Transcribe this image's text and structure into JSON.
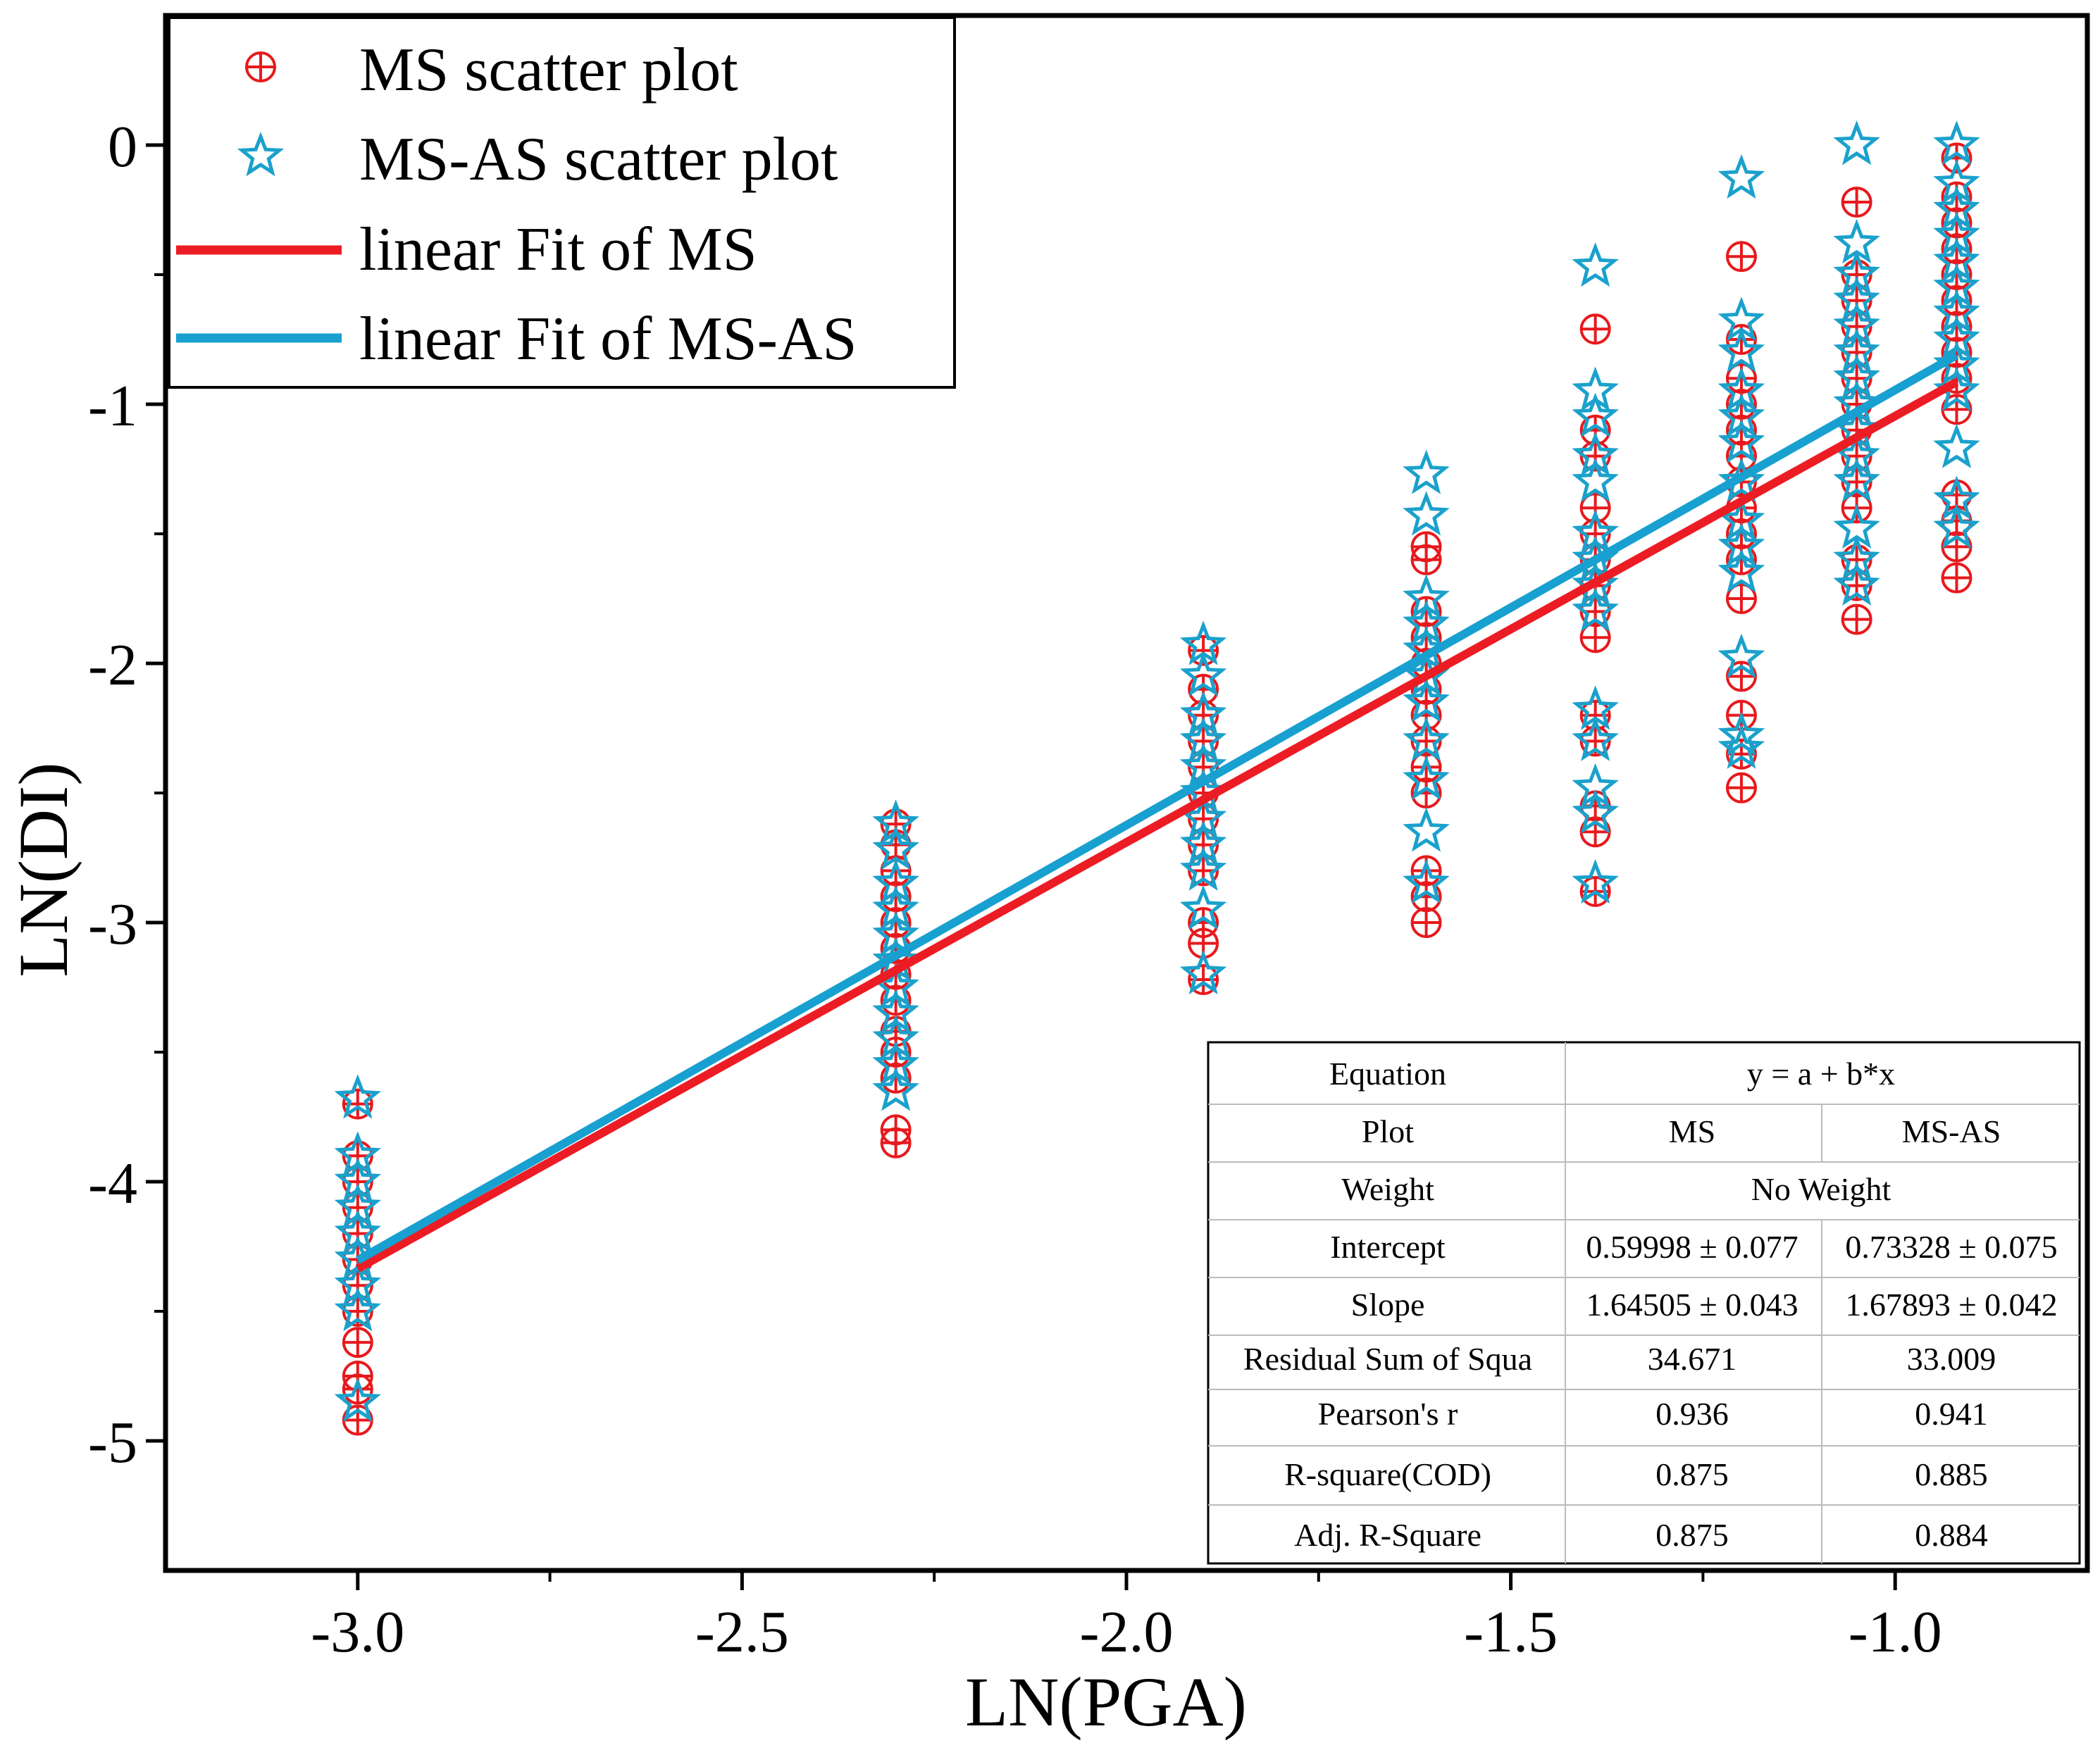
{
  "chart_data": {
    "type": "scatter",
    "xlabel": "LN(PGA)",
    "ylabel": "LN(DI)",
    "xlim": [
      -3.25,
      -0.75
    ],
    "ylim": [
      -5.5,
      0.5
    ],
    "xticks": [
      -3.0,
      -2.5,
      -2.0,
      -1.5,
      -1.0
    ],
    "xtick_labels": [
      "-3.0",
      "-2.5",
      "-2.0",
      "-1.5",
      "-1.0"
    ],
    "yticks": [
      0,
      -1,
      -2,
      -3,
      -4,
      -5
    ],
    "ytick_labels": [
      "0",
      "-1",
      "-2",
      "-3",
      "-4",
      "-5"
    ],
    "grid": false,
    "legend_position": "top-left",
    "series": [
      {
        "name": "MS scatter plot",
        "kind": "scatter",
        "marker": "circle-plus",
        "color": "#e8191c",
        "points": [
          [
            -3.0,
            -3.7
          ],
          [
            -3.0,
            -3.9
          ],
          [
            -3.0,
            -4.0
          ],
          [
            -3.0,
            -4.1
          ],
          [
            -3.0,
            -4.2
          ],
          [
            -3.0,
            -4.3
          ],
          [
            -3.0,
            -4.4
          ],
          [
            -3.0,
            -4.5
          ],
          [
            -3.0,
            -4.62
          ],
          [
            -3.0,
            -4.75
          ],
          [
            -3.0,
            -4.8
          ],
          [
            -3.0,
            -4.92
          ],
          [
            -2.3,
            -2.62
          ],
          [
            -2.3,
            -2.7
          ],
          [
            -2.3,
            -2.8
          ],
          [
            -2.3,
            -2.9
          ],
          [
            -2.3,
            -3.0
          ],
          [
            -2.3,
            -3.1
          ],
          [
            -2.3,
            -3.2
          ],
          [
            -2.3,
            -3.3
          ],
          [
            -2.3,
            -3.42
          ],
          [
            -2.3,
            -3.5
          ],
          [
            -2.3,
            -3.6
          ],
          [
            -2.3,
            -3.8
          ],
          [
            -2.3,
            -3.85
          ],
          [
            -1.9,
            -1.95
          ],
          [
            -1.9,
            -2.1
          ],
          [
            -1.9,
            -2.2
          ],
          [
            -1.9,
            -2.3
          ],
          [
            -1.9,
            -2.4
          ],
          [
            -1.9,
            -2.5
          ],
          [
            -1.9,
            -2.6
          ],
          [
            -1.9,
            -2.7
          ],
          [
            -1.9,
            -2.8
          ],
          [
            -1.9,
            -3.0
          ],
          [
            -1.9,
            -3.08
          ],
          [
            -1.9,
            -3.22
          ],
          [
            -1.61,
            -1.55
          ],
          [
            -1.61,
            -1.6
          ],
          [
            -1.61,
            -1.8
          ],
          [
            -1.61,
            -1.9
          ],
          [
            -1.61,
            -2.0
          ],
          [
            -1.61,
            -2.1
          ],
          [
            -1.61,
            -2.2
          ],
          [
            -1.61,
            -2.3
          ],
          [
            -1.61,
            -2.4
          ],
          [
            -1.61,
            -2.5
          ],
          [
            -1.61,
            -2.8
          ],
          [
            -1.61,
            -2.9
          ],
          [
            -1.61,
            -3.0
          ],
          [
            -1.39,
            -0.71
          ],
          [
            -1.39,
            -1.1
          ],
          [
            -1.39,
            -1.2
          ],
          [
            -1.39,
            -1.4
          ],
          [
            -1.39,
            -1.5
          ],
          [
            -1.39,
            -1.6
          ],
          [
            -1.39,
            -1.7
          ],
          [
            -1.39,
            -1.8
          ],
          [
            -1.39,
            -1.9
          ],
          [
            -1.39,
            -2.2
          ],
          [
            -1.39,
            -2.3
          ],
          [
            -1.39,
            -2.55
          ],
          [
            -1.39,
            -2.65
          ],
          [
            -1.39,
            -2.88
          ],
          [
            -1.2,
            -0.43
          ],
          [
            -1.2,
            -0.75
          ],
          [
            -1.2,
            -0.9
          ],
          [
            -1.2,
            -1.0
          ],
          [
            -1.2,
            -1.1
          ],
          [
            -1.2,
            -1.2
          ],
          [
            -1.2,
            -1.3
          ],
          [
            -1.2,
            -1.4
          ],
          [
            -1.2,
            -1.5
          ],
          [
            -1.2,
            -1.6
          ],
          [
            -1.2,
            -1.75
          ],
          [
            -1.2,
            -2.05
          ],
          [
            -1.2,
            -2.2
          ],
          [
            -1.2,
            -2.35
          ],
          [
            -1.2,
            -2.48
          ],
          [
            -1.05,
            -0.22
          ],
          [
            -1.05,
            -0.5
          ],
          [
            -1.05,
            -0.6
          ],
          [
            -1.05,
            -0.7
          ],
          [
            -1.05,
            -0.8
          ],
          [
            -1.05,
            -0.9
          ],
          [
            -1.05,
            -1.0
          ],
          [
            -1.05,
            -1.1
          ],
          [
            -1.05,
            -1.2
          ],
          [
            -1.05,
            -1.3
          ],
          [
            -1.05,
            -1.4
          ],
          [
            -1.05,
            -1.6
          ],
          [
            -1.05,
            -1.7
          ],
          [
            -1.05,
            -1.83
          ],
          [
            -0.92,
            -0.05
          ],
          [
            -0.92,
            -0.2
          ],
          [
            -0.92,
            -0.3
          ],
          [
            -0.92,
            -0.4
          ],
          [
            -0.92,
            -0.5
          ],
          [
            -0.92,
            -0.6
          ],
          [
            -0.92,
            -0.7
          ],
          [
            -0.92,
            -0.8
          ],
          [
            -0.92,
            -0.9
          ],
          [
            -0.92,
            -1.02
          ],
          [
            -0.92,
            -1.35
          ],
          [
            -0.92,
            -1.45
          ],
          [
            -0.92,
            -1.55
          ],
          [
            -0.92,
            -1.67
          ]
        ]
      },
      {
        "name": "MS-AS scatter plot",
        "kind": "scatter",
        "marker": "star",
        "color": "#1aa1cc",
        "points": [
          [
            -3.0,
            -3.68
          ],
          [
            -3.0,
            -3.9
          ],
          [
            -3.0,
            -4.0
          ],
          [
            -3.0,
            -4.1
          ],
          [
            -3.0,
            -4.2
          ],
          [
            -3.0,
            -4.3
          ],
          [
            -3.0,
            -4.4
          ],
          [
            -3.0,
            -4.5
          ],
          [
            -3.0,
            -4.85
          ],
          [
            -2.3,
            -2.62
          ],
          [
            -2.3,
            -2.72
          ],
          [
            -2.3,
            -2.85
          ],
          [
            -2.3,
            -2.95
          ],
          [
            -2.3,
            -3.05
          ],
          [
            -2.3,
            -3.15
          ],
          [
            -2.3,
            -3.25
          ],
          [
            -2.3,
            -3.35
          ],
          [
            -2.3,
            -3.45
          ],
          [
            -2.3,
            -3.55
          ],
          [
            -2.3,
            -3.65
          ],
          [
            -1.9,
            -1.93
          ],
          [
            -1.9,
            -2.05
          ],
          [
            -1.9,
            -2.2
          ],
          [
            -1.9,
            -2.3
          ],
          [
            -1.9,
            -2.4
          ],
          [
            -1.9,
            -2.5
          ],
          [
            -1.9,
            -2.6
          ],
          [
            -1.9,
            -2.7
          ],
          [
            -1.9,
            -2.8
          ],
          [
            -1.9,
            -2.95
          ],
          [
            -1.9,
            -3.2
          ],
          [
            -1.61,
            -1.27
          ],
          [
            -1.61,
            -1.43
          ],
          [
            -1.61,
            -1.75
          ],
          [
            -1.61,
            -1.85
          ],
          [
            -1.61,
            -1.95
          ],
          [
            -1.61,
            -2.05
          ],
          [
            -1.61,
            -2.15
          ],
          [
            -1.61,
            -2.3
          ],
          [
            -1.61,
            -2.45
          ],
          [
            -1.61,
            -2.65
          ],
          [
            -1.61,
            -2.85
          ],
          [
            -1.39,
            -0.47
          ],
          [
            -1.39,
            -0.95
          ],
          [
            -1.39,
            -1.05
          ],
          [
            -1.39,
            -1.2
          ],
          [
            -1.39,
            -1.3
          ],
          [
            -1.39,
            -1.5
          ],
          [
            -1.39,
            -1.6
          ],
          [
            -1.39,
            -1.7
          ],
          [
            -1.39,
            -1.8
          ],
          [
            -1.39,
            -2.18
          ],
          [
            -1.39,
            -2.3
          ],
          [
            -1.39,
            -2.48
          ],
          [
            -1.39,
            -2.58
          ],
          [
            -1.39,
            -2.85
          ],
          [
            -1.2,
            -0.13
          ],
          [
            -1.2,
            -0.68
          ],
          [
            -1.2,
            -0.8
          ],
          [
            -1.2,
            -0.95
          ],
          [
            -1.2,
            -1.05
          ],
          [
            -1.2,
            -1.15
          ],
          [
            -1.2,
            -1.3
          ],
          [
            -1.2,
            -1.45
          ],
          [
            -1.2,
            -1.55
          ],
          [
            -1.2,
            -1.65
          ],
          [
            -1.2,
            -1.98
          ],
          [
            -1.2,
            -2.28
          ],
          [
            -1.2,
            -2.33
          ],
          [
            -1.05,
            0.0
          ],
          [
            -1.05,
            -0.38
          ],
          [
            -1.05,
            -0.5
          ],
          [
            -1.05,
            -0.6
          ],
          [
            -1.05,
            -0.7
          ],
          [
            -1.05,
            -0.8
          ],
          [
            -1.05,
            -0.9
          ],
          [
            -1.05,
            -1.0
          ],
          [
            -1.05,
            -1.1
          ],
          [
            -1.05,
            -1.2
          ],
          [
            -1.05,
            -1.3
          ],
          [
            -1.05,
            -1.48
          ],
          [
            -1.05,
            -1.6
          ],
          [
            -1.05,
            -1.7
          ],
          [
            -0.92,
            0.0
          ],
          [
            -0.92,
            -0.15
          ],
          [
            -0.92,
            -0.25
          ],
          [
            -0.92,
            -0.35
          ],
          [
            -0.92,
            -0.45
          ],
          [
            -0.92,
            -0.55
          ],
          [
            -0.92,
            -0.65
          ],
          [
            -0.92,
            -0.75
          ],
          [
            -0.92,
            -0.85
          ],
          [
            -0.92,
            -0.95
          ],
          [
            -0.92,
            -1.17
          ],
          [
            -0.92,
            -1.37
          ],
          [
            -0.92,
            -1.48
          ]
        ]
      },
      {
        "name": "linear Fit of MS",
        "kind": "line",
        "color": "#ec1c24",
        "x": [
          -3.0,
          -0.92
        ],
        "y": [
          -4.335,
          -0.914
        ]
      },
      {
        "name": "linear Fit of MS-AS",
        "kind": "line",
        "color": "#17a0d0",
        "x": [
          -3.0,
          -0.92
        ],
        "y": [
          -4.303,
          -0.811
        ]
      }
    ],
    "stats_table": {
      "equation_label": "Equation",
      "equation_value": "y = a + b*x",
      "plot_label": "Plot",
      "plot_ms": "MS",
      "plot_msas": "MS-AS",
      "weight_label": "Weight",
      "weight_value": "No Weight",
      "rows": [
        {
          "label": "Intercept",
          "ms": "0.59998 ± 0.077",
          "msas": "0.73328 ± 0.075"
        },
        {
          "label": "Slope",
          "ms": "1.64505 ± 0.043",
          "msas": "1.67893 ± 0.042"
        },
        {
          "label": "Residual Sum of Squa",
          "ms": "34.671",
          "msas": "33.009"
        },
        {
          "label": "Pearson's r",
          "ms": "0.936",
          "msas": "0.941"
        },
        {
          "label": "R-square(COD)",
          "ms": "0.875",
          "msas": "0.885"
        },
        {
          "label": "Adj. R-Square",
          "ms": "0.875",
          "msas": "0.884"
        }
      ]
    }
  }
}
